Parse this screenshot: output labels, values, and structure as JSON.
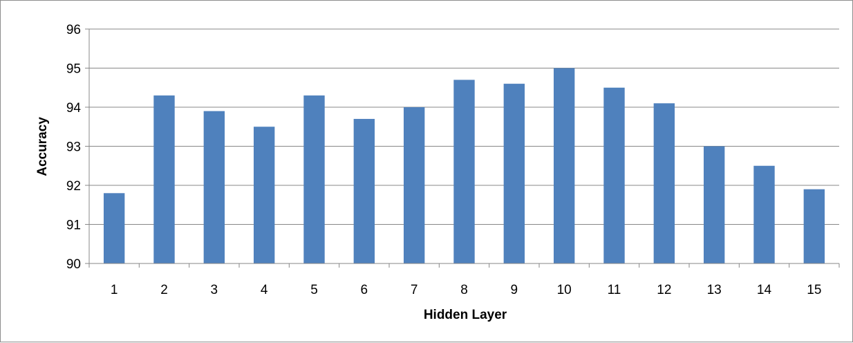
{
  "chart_data": {
    "type": "bar",
    "title": "",
    "xlabel": "Hidden Layer",
    "ylabel": "Accuracy",
    "categories": [
      "1",
      "2",
      "3",
      "4",
      "5",
      "6",
      "7",
      "8",
      "9",
      "10",
      "11",
      "12",
      "13",
      "14",
      "15"
    ],
    "series": [
      {
        "values": [
          91.8,
          94.3,
          93.9,
          93.5,
          94.3,
          93.7,
          94.0,
          94.7,
          94.6,
          95.0,
          94.5,
          94.1,
          93.0,
          92.5,
          91.9
        ]
      }
    ],
    "ylim": [
      90,
      96
    ],
    "yticks": [
      "90",
      "91",
      "92",
      "93",
      "94",
      "95",
      "96"
    ],
    "grid": true,
    "legend": "none",
    "colors": {
      "bar": "#4f81bd",
      "grid": "#878787",
      "axis": "#878787",
      "frame": "#8c8c8c"
    }
  }
}
